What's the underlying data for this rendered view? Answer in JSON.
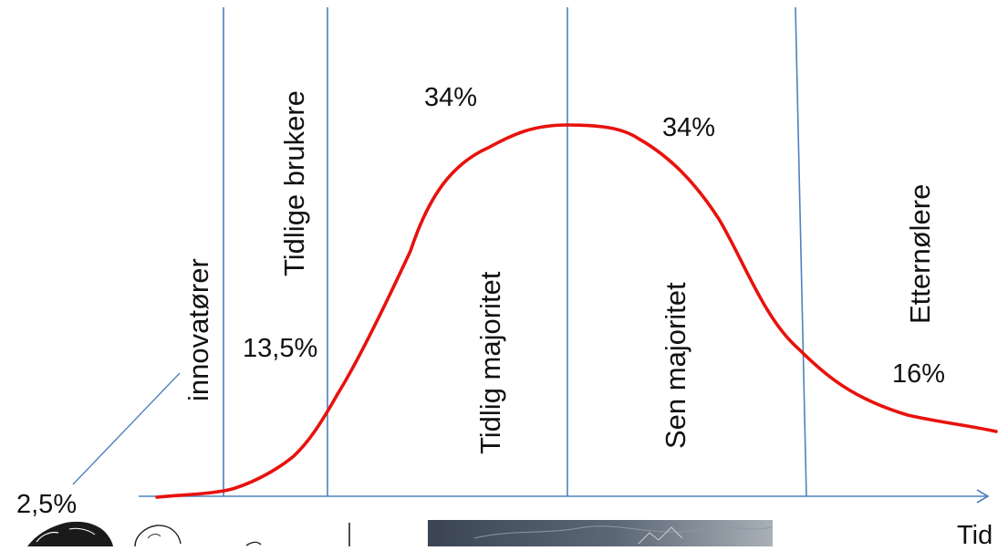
{
  "diagram": {
    "segments": [
      {
        "name": "innovatører",
        "share_label": "2,5%"
      },
      {
        "name": "Tidlige brukere",
        "share_label": "13,5%"
      },
      {
        "name": "Tidlig majoritet",
        "share_label": "34%"
      },
      {
        "name": "Sen majoritet",
        "share_label": "34%"
      },
      {
        "name": "Etternølere",
        "share_label": "16%"
      }
    ],
    "x_axis_label": "Tid",
    "colors": {
      "curve": "#e8120c",
      "dividers": "#4f81bd",
      "axis": "#4f81bd",
      "text": "#111111"
    }
  },
  "bottom_images": [
    {
      "icon": "person-sketch-image"
    },
    {
      "icon": "dark-photo-image"
    }
  ]
}
